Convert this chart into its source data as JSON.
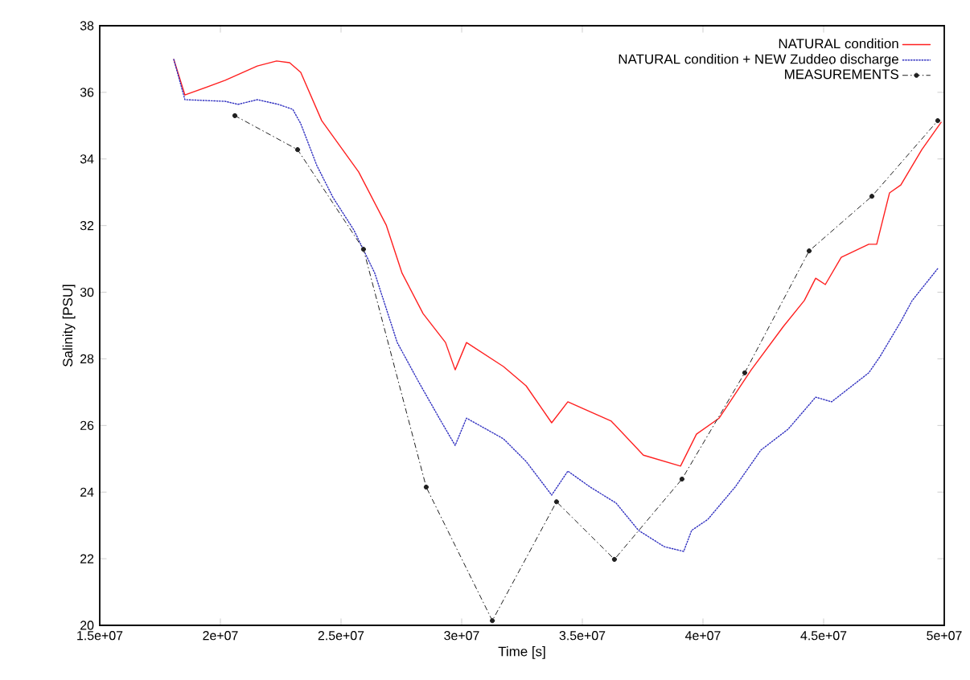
{
  "chart_data": {
    "type": "line",
    "xlabel": "Time [s]",
    "ylabel": "Salinity [PSU]",
    "xlim": [
      15000000,
      50000000
    ],
    "ylim": [
      20,
      38
    ],
    "xticks": [
      {
        "value": 15000000,
        "label": "1.5e+07"
      },
      {
        "value": 20000000,
        "label": "2e+07"
      },
      {
        "value": 25000000,
        "label": "2.5e+07"
      },
      {
        "value": 30000000,
        "label": "3e+07"
      },
      {
        "value": 35000000,
        "label": "3.5e+07"
      },
      {
        "value": 40000000,
        "label": "4e+07"
      },
      {
        "value": 45000000,
        "label": "4.5e+07"
      },
      {
        "value": 50000000,
        "label": "5e+07"
      }
    ],
    "yticks": [
      20,
      22,
      24,
      26,
      28,
      30,
      32,
      34,
      36,
      38
    ],
    "grid": false,
    "legend": "top right",
    "series": [
      {
        "name": "NATURAL condition",
        "color": "#ff2020",
        "line_style": "solid",
        "marker": "none",
        "x": [
          18070000,
          18530000,
          20200000,
          21530000,
          22330000,
          22870000,
          23330000,
          24200000,
          25730000,
          26870000,
          27530000,
          28400000,
          29330000,
          29730000,
          30200000,
          31730000,
          32670000,
          33730000,
          34400000,
          36200000,
          37530000,
          39070000,
          39730000,
          40670000,
          42000000,
          43330000,
          44200000,
          44670000,
          45070000,
          45730000,
          46870000,
          47200000,
          47730000,
          48200000,
          49070000,
          49870000
        ],
        "values": [
          36.99,
          35.92,
          36.36,
          36.79,
          36.94,
          36.89,
          36.6,
          35.15,
          33.61,
          32.02,
          30.57,
          29.36,
          28.49,
          27.67,
          28.49,
          27.77,
          27.19,
          26.08,
          26.71,
          26.13,
          25.11,
          24.78,
          25.74,
          26.22,
          27.67,
          28.97,
          29.75,
          30.42,
          30.23,
          31.05,
          31.44,
          31.44,
          32.98,
          33.22,
          34.28,
          35.1
        ]
      },
      {
        "name": "NATURAL condition + NEW Zuddeo discharge",
        "color": "#3030c0",
        "line_style": "dotted",
        "marker": "none",
        "x": [
          18070000,
          18530000,
          20200000,
          20730000,
          21530000,
          22400000,
          23000000,
          23330000,
          24000000,
          24670000,
          25530000,
          26400000,
          27330000,
          28200000,
          29070000,
          29730000,
          30200000,
          31730000,
          32670000,
          33730000,
          34400000,
          35330000,
          36400000,
          37330000,
          38400000,
          39200000,
          39530000,
          40200000,
          41330000,
          42400000,
          43530000,
          44670000,
          45330000,
          46870000,
          47330000,
          48200000,
          48670000,
          49730000
        ],
        "values": [
          36.99,
          35.78,
          35.73,
          35.64,
          35.78,
          35.64,
          35.49,
          35.06,
          33.8,
          32.84,
          31.87,
          30.57,
          28.49,
          27.33,
          26.22,
          25.4,
          26.22,
          25.6,
          24.92,
          23.91,
          24.63,
          24.15,
          23.67,
          22.85,
          22.36,
          22.22,
          22.85,
          23.18,
          24.15,
          25.26,
          25.89,
          26.85,
          26.71,
          27.58,
          28.06,
          29.12,
          29.75,
          30.71
        ]
      },
      {
        "name": "MEASUREMENTS",
        "color": "#202020",
        "line_style": "dashed",
        "marker": "circle",
        "x": [
          20600000,
          23200000,
          25930000,
          28530000,
          31270000,
          33930000,
          36330000,
          39130000,
          41730000,
          44400000,
          47000000,
          49730000
        ],
        "values": [
          35.3,
          34.28,
          31.29,
          24.15,
          20.14,
          23.71,
          21.98,
          24.39,
          27.58,
          31.24,
          32.88,
          35.15
        ]
      }
    ]
  }
}
